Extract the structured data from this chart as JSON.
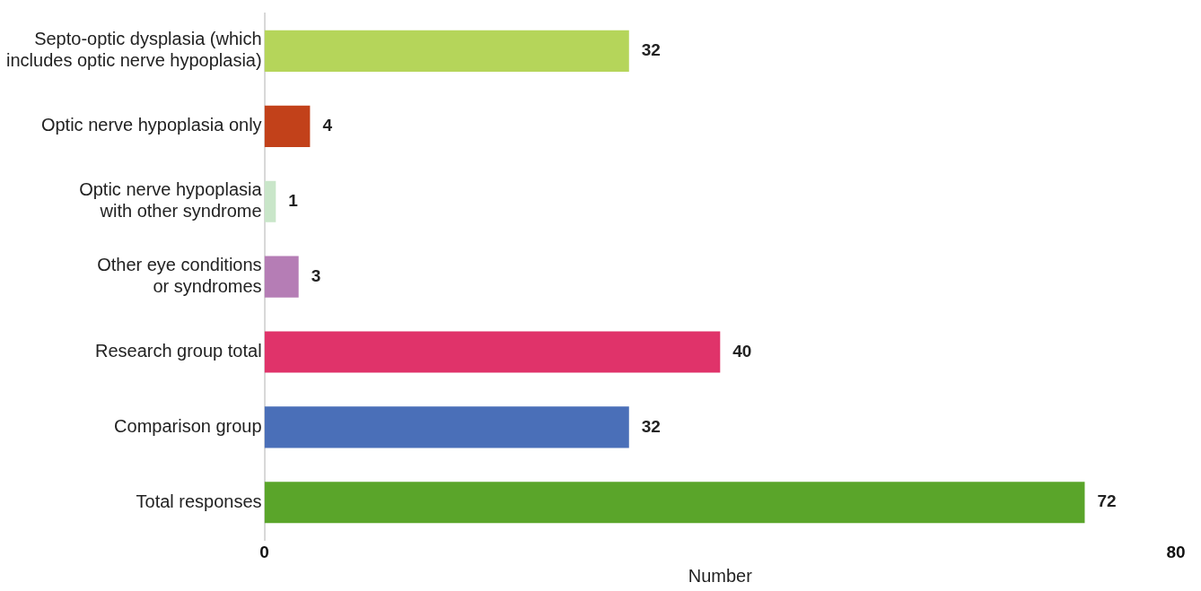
{
  "chart_data": {
    "type": "bar",
    "orientation": "horizontal",
    "xlabel": "Number",
    "categories": [
      "Septo-optic dysplasia (which includes optic nerve hypoplasia)",
      "Optic nerve hypoplasia only",
      "Optic nerve hypoplasia with other syndrome",
      "Other eye conditions or syndromes",
      "Research group total",
      "Comparison group",
      "Total responses"
    ],
    "values": [
      32,
      4,
      1,
      3,
      40,
      32,
      72
    ],
    "colors": [
      "#b5d55a",
      "#c2411a",
      "#c9e6c9",
      "#b57db5",
      "#e0336a",
      "#4a6fb8",
      "#5aa52a"
    ],
    "xlim": [
      0,
      80
    ],
    "xticks": [
      0,
      80
    ],
    "data_labels": true,
    "grid": false,
    "legend": false
  }
}
